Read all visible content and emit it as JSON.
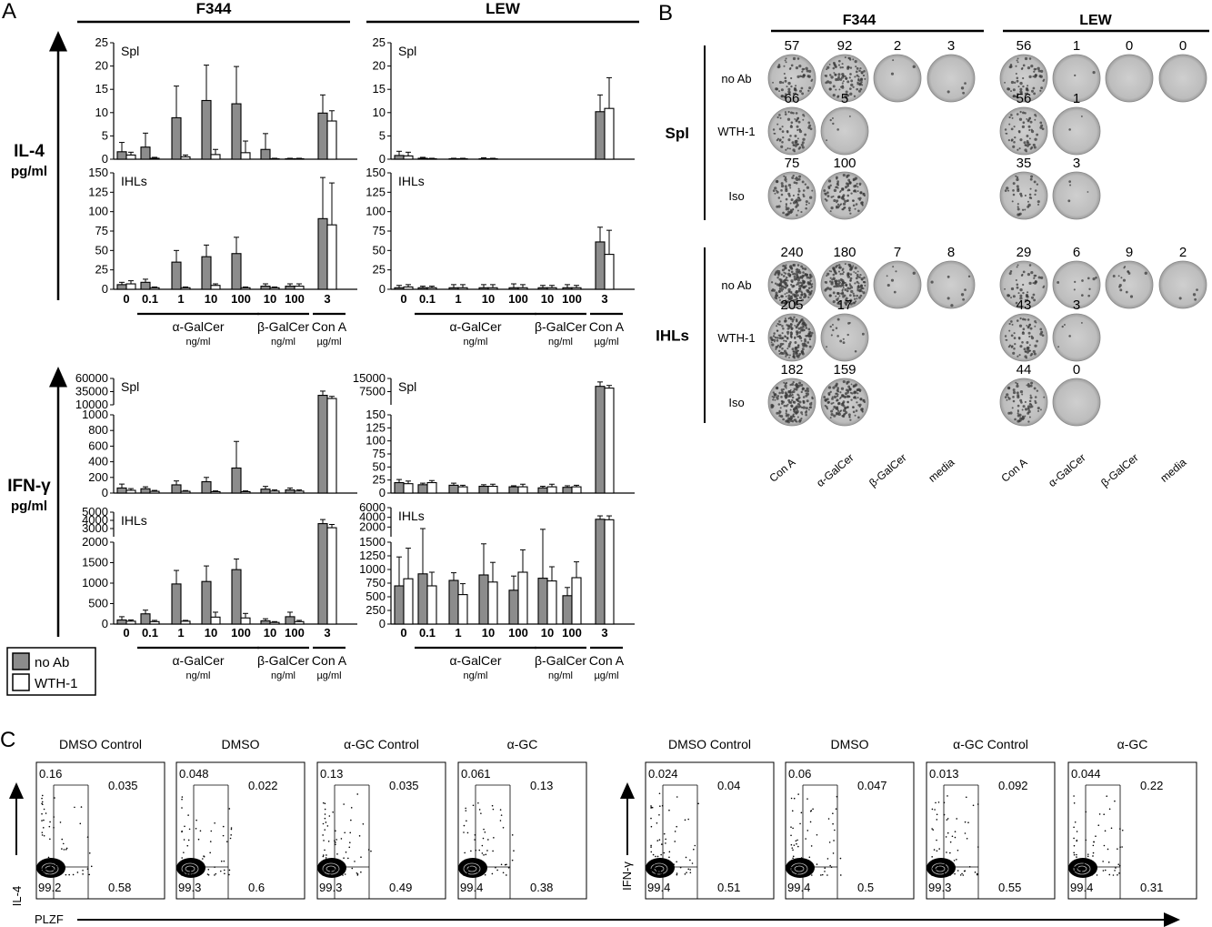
{
  "panel_labels": {
    "a": "A",
    "b": "B",
    "c": "C"
  },
  "strains": [
    "F344",
    "LEW"
  ],
  "panel_a": {
    "il4_label": "IL-4",
    "ifng_label": "IFN-γ",
    "unit_label": "pg/ml",
    "x_ticks": [
      "0",
      "0.1",
      "1",
      "10",
      "100",
      "10",
      "100",
      "3"
    ],
    "group_labels": [
      {
        "name": "α-GalCer",
        "unit": "ng/ml"
      },
      {
        "name": "β-GalCer",
        "unit": "ng/ml"
      },
      {
        "name": "Con A",
        "unit": "µg/ml"
      }
    ],
    "legend": [
      {
        "label": "no Ab",
        "color": "#8c8c8c"
      },
      {
        "label": "WTH-1",
        "color": "#ffffff"
      }
    ]
  },
  "chart_data": [
    {
      "id": "il4-spl-f344",
      "type": "bar",
      "title": "Spl",
      "categories": [
        "0",
        "0.1",
        "1",
        "10",
        "100",
        "10",
        "100",
        "3"
      ],
      "ylim": [
        0,
        25
      ],
      "yticks": [
        "0",
        "5",
        "10",
        "15",
        "20",
        "25"
      ],
      "series": [
        {
          "name": "no Ab",
          "values": [
            1.6,
            2.6,
            8.9,
            12.6,
            11.9,
            2.1,
            0.1,
            9.9
          ],
          "errors": [
            2.0,
            3.0,
            6.8,
            7.6,
            8.0,
            3.4,
            0.1,
            3.9
          ]
        },
        {
          "name": "WTH-1",
          "values": [
            0.9,
            0.2,
            0.5,
            1.0,
            1.4,
            0.1,
            0.1,
            8.2
          ],
          "errors": [
            0.6,
            0.2,
            0.4,
            1.1,
            2.5,
            0.1,
            0.1,
            2.2
          ]
        }
      ]
    },
    {
      "id": "il4-spl-lew",
      "type": "bar",
      "title": "Spl",
      "categories": [
        "0",
        "0.1",
        "1",
        "10",
        "100",
        "10",
        "100",
        "3"
      ],
      "ylim": [
        0,
        25
      ],
      "yticks": [
        "0",
        "5",
        "10",
        "15",
        "20",
        "25"
      ],
      "series": [
        {
          "name": "no Ab",
          "values": [
            0.8,
            0.2,
            0.1,
            0.1,
            0,
            0,
            0,
            10.2
          ],
          "errors": [
            0.9,
            0.2,
            0.1,
            0.2,
            0,
            0,
            0,
            3.6
          ]
        },
        {
          "name": "WTH-1",
          "values": [
            0.7,
            0.1,
            0.1,
            0.1,
            0,
            0,
            0,
            10.9
          ],
          "errors": [
            0.8,
            0.1,
            0.1,
            0.1,
            0,
            0,
            0,
            6.6
          ]
        }
      ]
    },
    {
      "id": "il4-ihl-f344",
      "type": "bar",
      "title": "IHLs",
      "categories": [
        "0",
        "0.1",
        "1",
        "10",
        "100",
        "10",
        "100",
        "3"
      ],
      "ylim": [
        0,
        150
      ],
      "yticks": [
        "0",
        "25",
        "50",
        "75",
        "100",
        "125",
        "150"
      ],
      "series": [
        {
          "name": "no Ab",
          "values": [
            6,
            9,
            35,
            42,
            46,
            4,
            4,
            91
          ],
          "errors": [
            3,
            4,
            15,
            15,
            21,
            3,
            3,
            53
          ]
        },
        {
          "name": "WTH-1",
          "values": [
            7,
            2,
            2,
            5,
            2,
            2,
            4,
            83
          ],
          "errors": [
            4,
            1,
            1,
            2,
            1,
            1,
            3,
            54
          ]
        }
      ]
    },
    {
      "id": "il4-ihl-lew",
      "type": "bar",
      "title": "IHLs",
      "categories": [
        "0",
        "0.1",
        "1",
        "10",
        "100",
        "10",
        "100",
        "3"
      ],
      "ylim": [
        0,
        150
      ],
      "yticks": [
        "0",
        "25",
        "50",
        "75",
        "100",
        "125",
        "150"
      ],
      "series": [
        {
          "name": "no Ab",
          "values": [
            2,
            2,
            2,
            2,
            2,
            2,
            2,
            61
          ],
          "errors": [
            3,
            2,
            4,
            4,
            5,
            3,
            4,
            19
          ]
        },
        {
          "name": "WTH-1",
          "values": [
            3,
            2,
            2,
            2,
            2,
            2,
            2,
            45
          ],
          "errors": [
            3,
            2,
            4,
            4,
            4,
            3,
            3,
            31
          ]
        }
      ]
    },
    {
      "id": "ifng-spl-f344",
      "type": "bar",
      "title": "Spl",
      "scale": "broken",
      "categories": [
        "0",
        "0.1",
        "1",
        "10",
        "100",
        "10",
        "100",
        "3"
      ],
      "yticks": [
        "0",
        "200",
        "400",
        "600",
        "800",
        "1000",
        "10000",
        "35000",
        "60000"
      ],
      "series": [
        {
          "name": "no Ab",
          "values": [
            65,
            55,
            105,
            145,
            320,
            50,
            40,
            28000
          ],
          "errors": [
            50,
            25,
            50,
            55,
            340,
            35,
            25,
            8000
          ]
        },
        {
          "name": "WTH-1",
          "values": [
            35,
            22,
            22,
            18,
            18,
            25,
            25,
            22000
          ],
          "errors": [
            22,
            12,
            10,
            10,
            10,
            15,
            15,
            4000
          ]
        }
      ]
    },
    {
      "id": "ifng-spl-lew",
      "type": "bar",
      "title": "Spl",
      "scale": "broken",
      "categories": [
        "0",
        "0.1",
        "1",
        "10",
        "100",
        "10",
        "100",
        "3"
      ],
      "yticks": [
        "0",
        "25",
        "50",
        "75",
        "100",
        "125",
        "150",
        "7500",
        "15000"
      ],
      "series": [
        {
          "name": "no Ab",
          "values": [
            20,
            16,
            15,
            13,
            12,
            10,
            11,
            10500
          ],
          "errors": [
            6,
            3,
            4,
            3,
            2,
            3,
            3,
            2500
          ]
        },
        {
          "name": "WTH-1",
          "values": [
            18,
            20,
            12,
            13,
            12,
            12,
            12,
            9500
          ],
          "errors": [
            5,
            4,
            3,
            4,
            5,
            5,
            3,
            1500
          ]
        }
      ]
    },
    {
      "id": "ifng-ihl-f344",
      "type": "bar",
      "title": "IHLs",
      "scale": "broken",
      "categories": [
        "0",
        "0.1",
        "1",
        "10",
        "100",
        "10",
        "100",
        "3"
      ],
      "yticks": [
        "0",
        "500",
        "1000",
        "1500",
        "2000",
        "3000",
        "4000",
        "5000"
      ],
      "series": [
        {
          "name": "no Ab",
          "values": [
            100,
            250,
            980,
            1040,
            1330,
            80,
            180,
            3600
          ],
          "errors": [
            80,
            90,
            330,
            380,
            260,
            50,
            110,
            500
          ]
        },
        {
          "name": "WTH-1",
          "values": [
            70,
            60,
            70,
            170,
            150,
            40,
            60,
            3100
          ],
          "errors": [
            30,
            30,
            20,
            120,
            110,
            20,
            30,
            400
          ]
        }
      ]
    },
    {
      "id": "ifng-ihl-lew",
      "type": "bar",
      "title": "IHLs",
      "scale": "broken",
      "categories": [
        "0",
        "0.1",
        "1",
        "10",
        "100",
        "10",
        "100",
        "3"
      ],
      "yticks": [
        "0",
        "250",
        "500",
        "750",
        "1000",
        "1250",
        "1500",
        "2000",
        "4000",
        "6000"
      ],
      "series": [
        {
          "name": "no Ab",
          "values": [
            700,
            920,
            800,
            900,
            620,
            840,
            520,
            3600
          ],
          "errors": [
            530,
            760,
            140,
            570,
            260,
            690,
            150,
            700
          ]
        },
        {
          "name": "WTH-1",
          "values": [
            830,
            700,
            540,
            770,
            950,
            790,
            850,
            3500
          ],
          "errors": [
            560,
            250,
            200,
            360,
            410,
            260,
            290,
            800
          ]
        }
      ]
    }
  ],
  "panel_b": {
    "row_groups": [
      "Spl",
      "IHLs"
    ],
    "row_labels": [
      "no Ab",
      "WTH-1",
      "Iso"
    ],
    "col_labels": [
      "Con A",
      "α-GalCer",
      "β-GalCer",
      "media"
    ],
    "counts": {
      "spl_f344": [
        [
          "57",
          "92",
          "2",
          "3"
        ],
        [
          "66",
          "5"
        ],
        [
          "75",
          "100"
        ]
      ],
      "spl_lew": [
        [
          "56",
          "1",
          "0",
          "0"
        ],
        [
          "56",
          "1"
        ],
        [
          "35",
          "3"
        ]
      ],
      "ihl_f344": [
        [
          "240",
          "180",
          "7",
          "8"
        ],
        [
          "205",
          "17"
        ],
        [
          "182",
          "159"
        ]
      ],
      "ihl_lew": [
        [
          "29",
          "6",
          "9",
          "2"
        ],
        [
          "43",
          "3"
        ],
        [
          "44",
          "0"
        ]
      ]
    }
  },
  "panel_c": {
    "titles": [
      "DMSO Control",
      "DMSO",
      "α-GC Control",
      "α-GC"
    ],
    "il4_axis": "IL-4",
    "ifng_axis": "IFN-γ",
    "x_axis": "PLZF",
    "il4_plots": [
      {
        "ul": "0.16",
        "ur": "0.035",
        "ll": "99.2",
        "lr": "0.58"
      },
      {
        "ul": "0.048",
        "ur": "0.022",
        "ll": "99.3",
        "lr": "0.6"
      },
      {
        "ul": "0.13",
        "ur": "0.035",
        "ll": "99.3",
        "lr": "0.49"
      },
      {
        "ul": "0.061",
        "ur": "0.13",
        "ll": "99.4",
        "lr": "0.38"
      }
    ],
    "ifng_plots": [
      {
        "ul": "0.024",
        "ur": "0.04",
        "ll": "99.4",
        "lr": "0.51"
      },
      {
        "ul": "0.06",
        "ur": "0.047",
        "ll": "99.4",
        "lr": "0.5"
      },
      {
        "ul": "0.013",
        "ur": "0.092",
        "ll": "99.3",
        "lr": "0.55"
      },
      {
        "ul": "0.044",
        "ur": "0.22",
        "ll": "99.4",
        "lr": "0.31"
      }
    ]
  }
}
